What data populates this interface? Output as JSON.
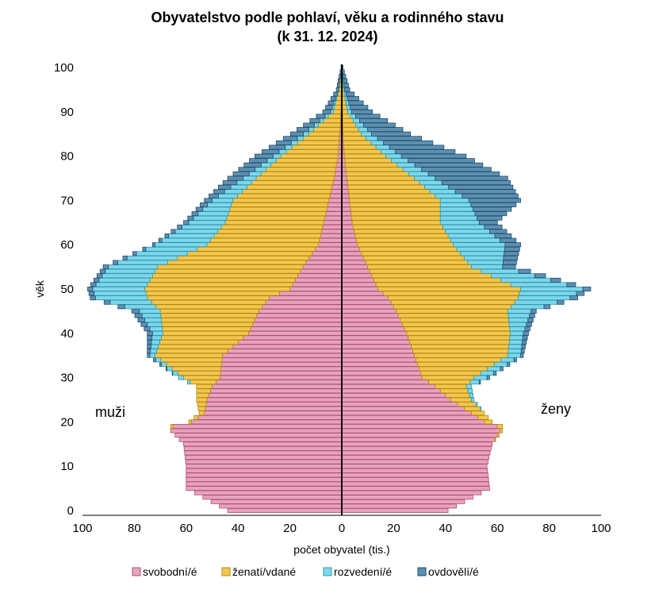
{
  "title_line1": "Obyvatelstvo podle pohlaví, věku a rodinného stavu",
  "title_line2": "(k 31. 12. 2024)",
  "chart_data": {
    "type": "bar",
    "subtype": "population-pyramid",
    "xlabel": "počet obyvatel  (tis.)",
    "ylabel": "věk",
    "xlim": [
      -100,
      100
    ],
    "ylim": [
      0,
      100
    ],
    "x_ticks": [
      "100",
      "80",
      "60",
      "40",
      "20",
      "0",
      "20",
      "40",
      "60",
      "80",
      "100"
    ],
    "y_ticks": [
      "0",
      "10",
      "20",
      "30",
      "40",
      "50",
      "60",
      "70",
      "80",
      "90",
      "100"
    ],
    "left_label": "muži",
    "right_label": "ženy",
    "legend_position": "bottom",
    "series": [
      {
        "name": "svobodní/é",
        "color": "#e6a3bf"
      },
      {
        "name": "ženatí/vdané",
        "color": "#f2c64f"
      },
      {
        "name": "rozvedení/é",
        "color": "#7fd6ea"
      },
      {
        "name": "ovdovělí/é",
        "color": "#5f8fb0"
      }
    ],
    "ages": "0–100",
    "male_key_ages": {
      "age": [
        0,
        5,
        10,
        15,
        18,
        19,
        20,
        22,
        25,
        28,
        30,
        35,
        40,
        45,
        48,
        50,
        55,
        60,
        65,
        70,
        75,
        80,
        85,
        90,
        95,
        100
      ],
      "single": [
        44,
        60,
        60,
        61,
        66,
        65,
        58,
        53,
        52,
        50,
        47,
        46,
        36,
        32,
        28,
        20,
        15,
        9,
        7,
        5,
        3,
        1.5,
        0.8,
        0.3,
        0.1,
        0
      ],
      "married": [
        0,
        0,
        0,
        0,
        0,
        1,
        1,
        2,
        4,
        6,
        14,
        26,
        33,
        38,
        47,
        56,
        56,
        43,
        38,
        37,
        30,
        22,
        12,
        3,
        1,
        0
      ],
      "divorced": [
        0,
        0,
        0,
        0,
        0,
        0,
        0,
        0,
        0,
        0,
        2,
        2,
        4,
        8,
        20,
        20,
        19,
        20,
        14,
        8,
        5,
        3,
        2,
        1,
        0,
        0
      ],
      "widowed": [
        0,
        0,
        0,
        0,
        0,
        0,
        0,
        0,
        0,
        0,
        0,
        1,
        2,
        3,
        2,
        2,
        2,
        1,
        2,
        3,
        6,
        7,
        5,
        3,
        1,
        0.3
      ]
    },
    "female_key_ages": {
      "age": [
        0,
        5,
        10,
        15,
        18,
        19,
        20,
        22,
        25,
        28,
        30,
        35,
        40,
        45,
        48,
        50,
        55,
        60,
        65,
        70,
        75,
        80,
        85,
        90,
        95,
        100
      ],
      "single": [
        41,
        57,
        56,
        58,
        61,
        60,
        55,
        50,
        42,
        36,
        31,
        28,
        25,
        21,
        18,
        14,
        10,
        6,
        4,
        3,
        2,
        1,
        0.5,
        0.3,
        0.1,
        0
      ],
      "married": [
        0,
        0,
        0,
        0,
        1,
        2,
        3,
        5,
        8,
        12,
        20,
        36,
        40,
        43,
        50,
        55,
        40,
        37,
        34,
        35,
        26,
        16,
        7,
        2,
        0.5,
        0
      ],
      "divorced": [
        0,
        0,
        0,
        0,
        0,
        0,
        0,
        0,
        1,
        2,
        5,
        5,
        5,
        9,
        20,
        24,
        12,
        20,
        15,
        11,
        8,
        6,
        4,
        1.5,
        0.5,
        0
      ],
      "widowed": [
        0,
        0,
        0,
        0,
        0,
        0,
        0,
        0,
        0,
        0,
        1,
        1,
        2,
        2,
        3,
        3,
        5,
        6,
        7,
        20,
        28,
        25,
        15,
        8,
        2,
        0.5
      ]
    }
  }
}
